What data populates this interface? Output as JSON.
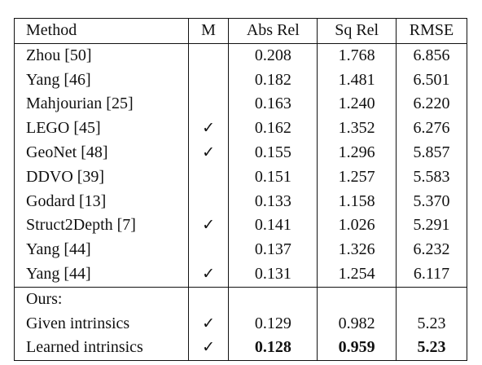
{
  "table": {
    "headers": {
      "method": "Method",
      "m": "M",
      "abs_rel": "Abs Rel",
      "sq_rel": "Sq Rel",
      "rmse": "RMSE"
    },
    "check_mark": "✓",
    "rows": [
      {
        "method": "Zhou [50]",
        "m": "",
        "abs_rel": "0.208",
        "sq_rel": "1.768",
        "rmse": "6.856"
      },
      {
        "method": "Yang [46]",
        "m": "",
        "abs_rel": "0.182",
        "sq_rel": "1.481",
        "rmse": "6.501"
      },
      {
        "method": "Mahjourian [25]",
        "m": "",
        "abs_rel": "0.163",
        "sq_rel": "1.240",
        "rmse": "6.220"
      },
      {
        "method": "LEGO [45]",
        "m": "✓",
        "abs_rel": "0.162",
        "sq_rel": "1.352",
        "rmse": "6.276"
      },
      {
        "method": "GeoNet [48]",
        "m": "✓",
        "abs_rel": "0.155",
        "sq_rel": "1.296",
        "rmse": "5.857"
      },
      {
        "method": "DDVO [39]",
        "m": "",
        "abs_rel": "0.151",
        "sq_rel": "1.257",
        "rmse": "5.583"
      },
      {
        "method": "Godard [13]",
        "m": "",
        "abs_rel": "0.133",
        "sq_rel": "1.158",
        "rmse": "5.370"
      },
      {
        "method": "Struct2Depth [7]",
        "m": "✓",
        "abs_rel": "0.141",
        "sq_rel": "1.026",
        "rmse": "5.291"
      },
      {
        "method": "Yang [44]",
        "m": "",
        "abs_rel": "0.137",
        "sq_rel": "1.326",
        "rmse": "6.232"
      },
      {
        "method": "Yang [44]",
        "m": "✓",
        "abs_rel": "0.131",
        "sq_rel": "1.254",
        "rmse": "6.117"
      }
    ],
    "ours_label": "Ours:",
    "ours_rows": [
      {
        "method": "Given intrinsics",
        "m": "✓",
        "abs_rel": "0.129",
        "sq_rel": "0.982",
        "rmse": "5.23",
        "bold": false
      },
      {
        "method": "Learned intrinsics",
        "m": "✓",
        "abs_rel": "0.128",
        "sq_rel": "0.959",
        "rmse": "5.23",
        "bold": true
      }
    ]
  }
}
